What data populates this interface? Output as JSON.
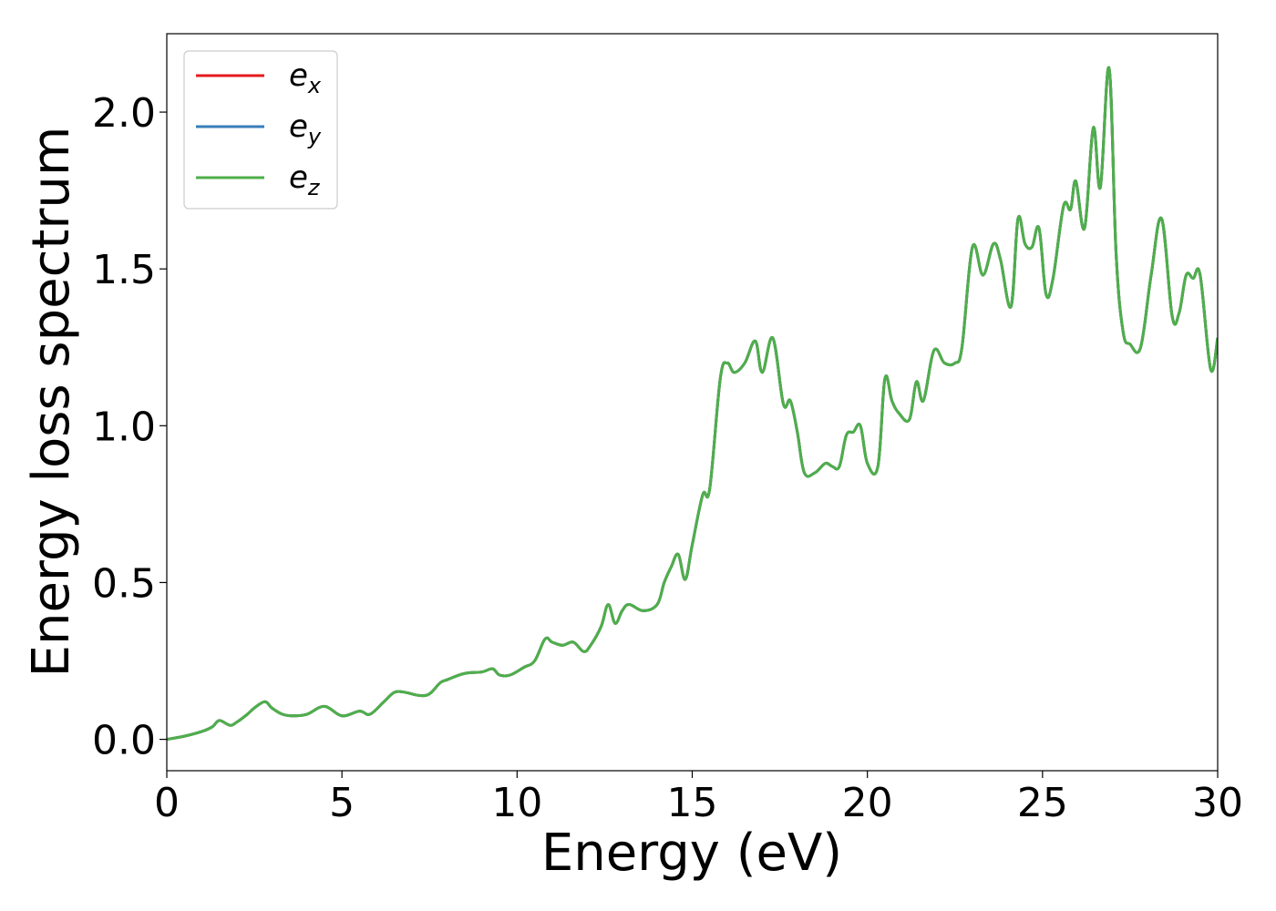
{
  "chart_data": {
    "type": "line",
    "xlabel": "Energy (eV)",
    "ylabel": "Energy loss spectrum",
    "xlim": [
      0,
      30
    ],
    "ylim": [
      -0.1,
      2.25
    ],
    "xticks": [
      0,
      5,
      10,
      15,
      20,
      25,
      30
    ],
    "xtick_labels": [
      "0",
      "5",
      "10",
      "15",
      "20",
      "25",
      "30"
    ],
    "yticks": [
      0.0,
      0.5,
      1.0,
      1.5,
      2.0
    ],
    "ytick_labels": [
      "0.0",
      "0.5",
      "1.0",
      "1.5",
      "2.0"
    ],
    "grid": false,
    "legend_position": "top-left",
    "series": [
      {
        "name": "e_x",
        "legend_base": "e",
        "legend_sub": "x",
        "color": "#e41a1c"
      },
      {
        "name": "e_y",
        "legend_base": "e",
        "legend_sub": "y",
        "color": "#377eb8"
      },
      {
        "name": "e_z",
        "legend_base": "e",
        "legend_sub": "z",
        "color": "#4daf4a"
      }
    ],
    "x": [
      0,
      0.5,
      1.0,
      1.3,
      1.5,
      1.8,
      2.0,
      2.3,
      2.5,
      2.8,
      3.0,
      3.3,
      3.6,
      4.0,
      4.5,
      5.0,
      5.5,
      5.8,
      6.2,
      6.5,
      6.8,
      7.2,
      7.5,
      7.8,
      8.0,
      8.5,
      9.0,
      9.3,
      9.5,
      9.8,
      10.2,
      10.5,
      10.8,
      11.0,
      11.3,
      11.6,
      11.9,
      12.1,
      12.4,
      12.6,
      12.8,
      13.0,
      13.2,
      13.6,
      14.0,
      14.2,
      14.4,
      14.6,
      14.8,
      15.0,
      15.3,
      15.5,
      15.8,
      16.0,
      16.2,
      16.5,
      16.8,
      17.0,
      17.3,
      17.6,
      17.8,
      18.0,
      18.2,
      18.5,
      18.8,
      19.0,
      19.2,
      19.4,
      19.6,
      19.8,
      20.0,
      20.3,
      20.5,
      20.7,
      20.9,
      21.2,
      21.4,
      21.6,
      21.9,
      22.2,
      22.5,
      22.7,
      23.0,
      23.3,
      23.6,
      23.8,
      24.1,
      24.3,
      24.5,
      24.7,
      24.9,
      25.1,
      25.3,
      25.6,
      25.8,
      25.95,
      26.2,
      26.45,
      26.65,
      26.9,
      27.1,
      27.3,
      27.5,
      27.8,
      28.1,
      28.4,
      28.7,
      28.9,
      29.1,
      29.3,
      29.5,
      29.8,
      30.0
    ],
    "y": [
      0.0,
      0.01,
      0.025,
      0.04,
      0.06,
      0.045,
      0.055,
      0.08,
      0.1,
      0.12,
      0.1,
      0.08,
      0.075,
      0.08,
      0.105,
      0.075,
      0.09,
      0.08,
      0.12,
      0.15,
      0.15,
      0.14,
      0.145,
      0.18,
      0.19,
      0.21,
      0.215,
      0.225,
      0.205,
      0.205,
      0.23,
      0.25,
      0.32,
      0.31,
      0.3,
      0.31,
      0.28,
      0.3,
      0.36,
      0.43,
      0.37,
      0.41,
      0.43,
      0.41,
      0.43,
      0.5,
      0.55,
      0.59,
      0.51,
      0.62,
      0.78,
      0.8,
      1.15,
      1.2,
      1.17,
      1.2,
      1.27,
      1.17,
      1.28,
      1.07,
      1.08,
      0.98,
      0.85,
      0.85,
      0.88,
      0.87,
      0.87,
      0.97,
      0.98,
      1.0,
      0.88,
      0.87,
      1.15,
      1.08,
      1.04,
      1.02,
      1.14,
      1.08,
      1.24,
      1.2,
      1.2,
      1.25,
      1.57,
      1.48,
      1.58,
      1.53,
      1.38,
      1.66,
      1.58,
      1.57,
      1.63,
      1.42,
      1.47,
      1.7,
      1.69,
      1.78,
      1.63,
      1.95,
      1.76,
      2.14,
      1.55,
      1.3,
      1.26,
      1.25,
      1.48,
      1.66,
      1.35,
      1.36,
      1.48,
      1.47,
      1.48,
      1.18,
      1.28
    ]
  }
}
